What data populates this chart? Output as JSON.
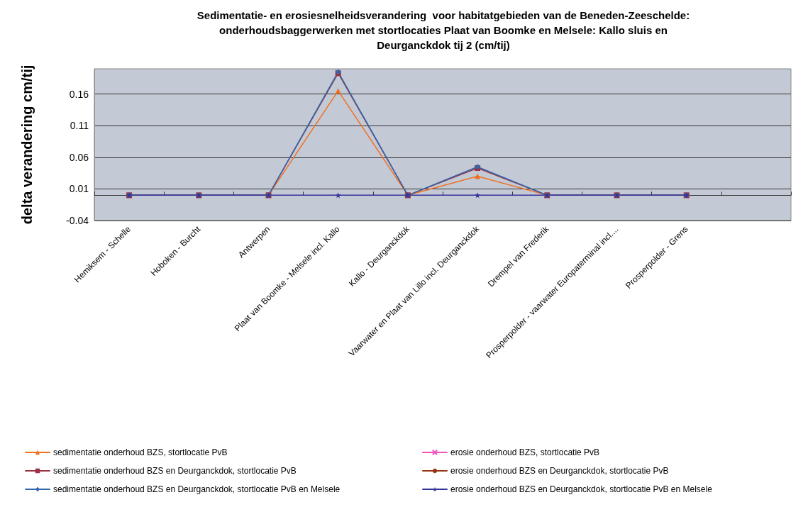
{
  "chart_data": {
    "type": "line",
    "title": "Sedimentatie- en erosiesnelheidsverandering  voor habitatgebieden van de Beneden-Zeeschelde:\nonderhoudsbaggerwerken met stortlocaties Plaat van Boomke en Melsele: Kallo sluis en\nDeurganckdok tij 2 (cm/tij)",
    "ylabel": "delta verandering cm/tij",
    "categories": [
      "Hemiksem - Schelle",
      "Hoboken - Burcht",
      "Antwerpen",
      "Plaat van Boomke - Melsele incl. Kallo",
      "Kallo - Deurganckdok",
      "Vaarwater en Plaat van Lillo incl. Deurganckdok",
      "Drempel van Frederik",
      "Prosperpolder - vaarwater Europaterminal incl....",
      "Prosperpolder - Grens",
      null
    ],
    "series": [
      {
        "name": "sedimentatie onderhoud BZS, stortlocatie PvB",
        "color": "#f07020",
        "marker": "triangle",
        "values": [
          0,
          0,
          0,
          0.165,
          0,
          0.03,
          0,
          0,
          0,
          null
        ]
      },
      {
        "name": "sedimentatie onderhoud BZS en Deurganckdok, stortlocatie PvB",
        "color": "#993344",
        "marker": "square",
        "values": [
          0,
          0,
          0,
          0.193,
          0,
          0.043,
          0,
          0,
          0,
          null
        ]
      },
      {
        "name": "sedimentatie onderhoud BZS en Deurganckdok, stortlocatie PvB en Melsele",
        "color": "#3366aa",
        "marker": "diamond",
        "values": [
          0,
          0,
          0,
          0.195,
          0,
          0.045,
          0,
          0,
          0,
          null
        ]
      },
      {
        "name": "erosie onderhoud BZS, stortlocatie PvB",
        "color": "#ee55bb",
        "marker": "cross",
        "values": [
          null,
          null,
          null,
          null,
          null,
          null,
          null,
          null,
          null,
          null
        ]
      },
      {
        "name": "erosie onderhoud BZS en Deurganckdok, stortlocatie PvB",
        "color": "#993311",
        "marker": "circle",
        "values": [
          null,
          null,
          null,
          null,
          null,
          null,
          null,
          null,
          null,
          null
        ]
      },
      {
        "name": "erosie onderhoud BZS en Deurganckdok, stortlocatie PvB en Melsele",
        "color": "#333399",
        "marker": "star",
        "values": [
          0,
          0,
          0,
          0,
          0,
          0,
          0,
          0,
          0,
          null
        ]
      }
    ],
    "ylim": [
      -0.04,
      0.2
    ],
    "yticks": [
      -0.04,
      0.01,
      0.06,
      0.11,
      0.16
    ],
    "grid": "y",
    "legend": "bottom",
    "line_style": "solid"
  }
}
